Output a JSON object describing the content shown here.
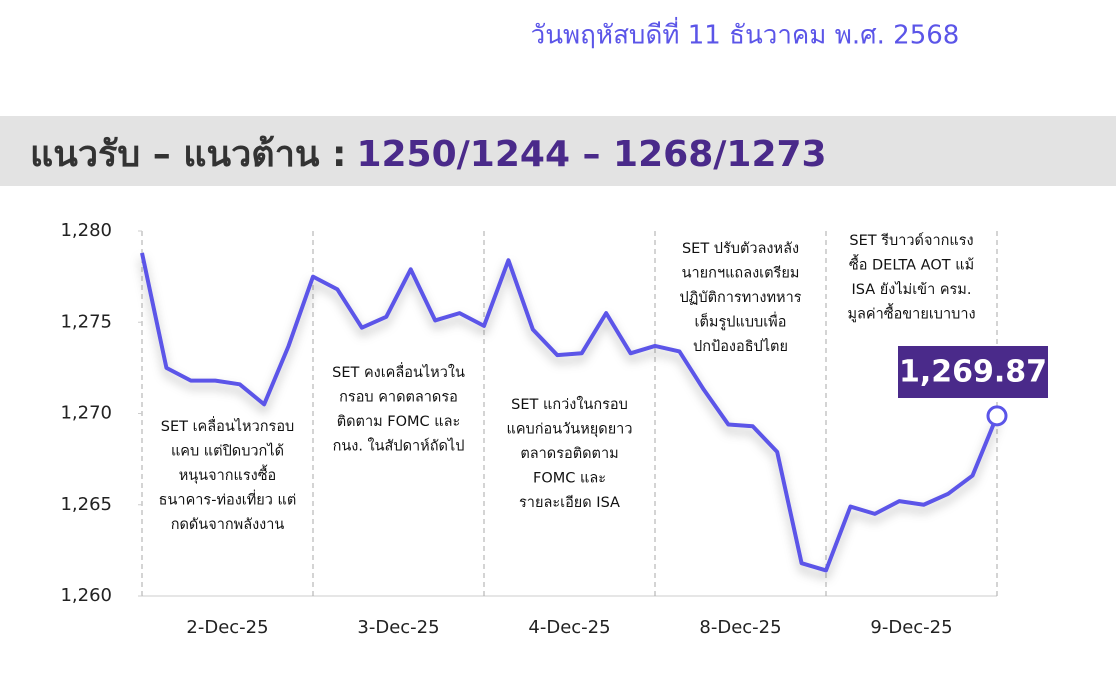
{
  "header": {
    "date": "วันพฤหัสบดีที่ 11 ธันวาคม พ.ศ. 2568",
    "title_label": "แนวรับ – แนวต้าน :",
    "title_levels": "1250/1244 – 1268/1273"
  },
  "chart_data": {
    "type": "line",
    "color": "#5b55e8",
    "day_labels": [
      "2-Dec-25",
      "3-Dec-25",
      "4-Dec-25",
      "8-Dec-25",
      "9-Dec-25"
    ],
    "values": [
      1278.8,
      1272.5,
      1271.8,
      1271.8,
      1271.6,
      1270.5,
      1273.7,
      1277.5,
      1276.8,
      1274.7,
      1275.3,
      1277.9,
      1275.1,
      1275.5,
      1274.8,
      1278.4,
      1274.6,
      1273.2,
      1273.3,
      1275.5,
      1273.3,
      1273.7,
      1273.4,
      1271.3,
      1269.4,
      1269.3,
      1267.9,
      1261.8,
      1261.4,
      1264.9,
      1264.5,
      1265.2,
      1265.0,
      1265.6,
      1266.6,
      1269.87
    ],
    "value_labels": [
      null,
      null,
      null,
      null,
      null,
      null,
      null,
      null,
      null,
      null,
      null,
      null,
      null,
      null,
      null,
      null,
      null,
      null,
      null,
      null,
      null,
      null,
      null,
      null,
      null,
      null,
      null,
      null,
      null,
      null,
      null,
      null,
      null,
      null,
      null,
      "1,269.87"
    ],
    "ylim": [
      1260,
      1280
    ],
    "yticks": [
      {
        "value": 1260,
        "label": "1,260"
      },
      {
        "value": 1265,
        "label": "1,265"
      },
      {
        "value": 1270,
        "label": "1,270"
      },
      {
        "value": 1275,
        "label": "1,275"
      },
      {
        "value": 1280,
        "label": "1,280"
      }
    ],
    "annotations": [
      [
        "SET เคลื่อนไหวกรอบ",
        "แคบ แต่ปิดบวกได้",
        "หนุนจากแรงซื้อ",
        "ธนาคาร-ท่องเที่ยว แต่",
        "กดดันจากพลังงาน"
      ],
      [
        "SET คงเคลื่อนไหวใน",
        "กรอบ คาดตลาดรอ",
        "ติดตาม FOMC และ",
        "กนง. ในสัปดาห์ถัดไป"
      ],
      [
        "SET แกว่งในกรอบ",
        "แคบก่อนวันหยุดยาว",
        "ตลาดรอติดตาม",
        "FOMC และ",
        "รายละเอียด ISA"
      ],
      [
        "SET ปรับตัวลงหลัง",
        "นายกฯแถลงเตรียม",
        "ปฏิบัติการทางทหาร",
        "เต็มรูปแบบเพื่อ",
        "ปกป้องอธิปไตย"
      ],
      [
        "SET รีบาวด์จากแรง",
        "ซื้อ DELTA AOT แม้",
        "ISA ยังไม่เข้า ครม.",
        "มูลค่าซื้อขายเบาบาง"
      ]
    ]
  }
}
